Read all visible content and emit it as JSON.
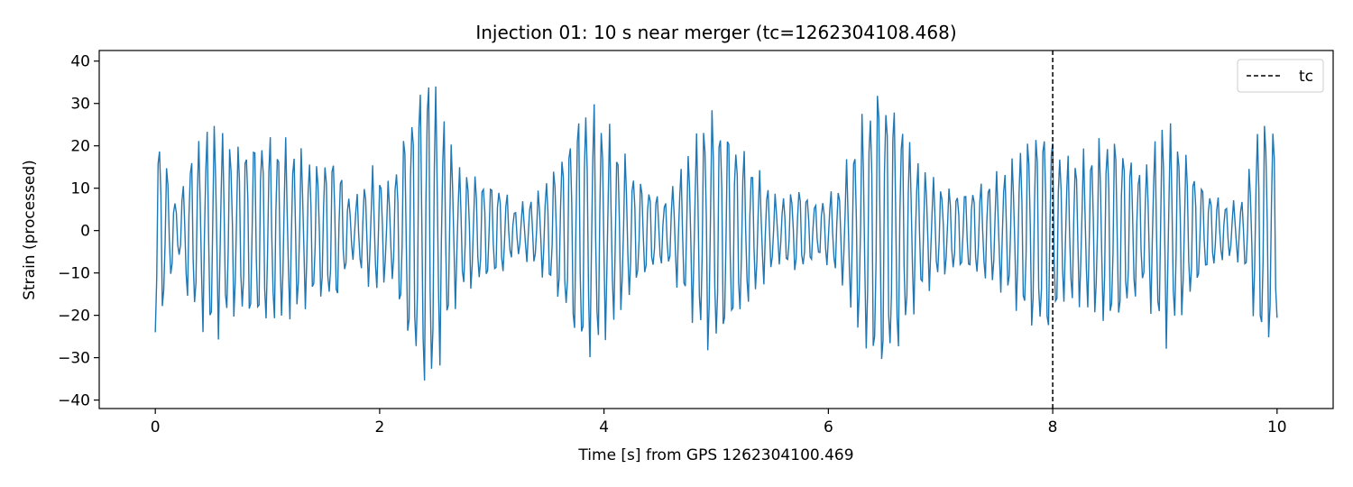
{
  "chart_data": {
    "type": "line",
    "title": "Injection 01: 10 s near merger (tc=1262304108.468)",
    "xlabel": "Time [s] from GPS 1262304100.469",
    "ylabel": "Strain (processed)",
    "xlim": [
      -0.5,
      10.5
    ],
    "ylim": [
      -42,
      42.5
    ],
    "xticks": [
      0,
      2,
      4,
      6,
      8,
      10
    ],
    "yticks": [
      -40,
      -30,
      -20,
      -10,
      0,
      10,
      20,
      30,
      40
    ],
    "xtick_labels": [
      "0",
      "2",
      "4",
      "6",
      "8",
      "10"
    ],
    "ytick_labels": [
      "−40",
      "−30",
      "−20",
      "−10",
      "0",
      "10",
      "20",
      "30",
      "40"
    ],
    "grid": false,
    "legend": {
      "placement": "upper-right",
      "entries": [
        "tc"
      ]
    },
    "colors": {
      "series": "#1f77b4",
      "tc_line": "#000000"
    },
    "series": [
      {
        "style": "solid",
        "sampling": {
          "start": 0,
          "end": 10,
          "step": 0.0125
        },
        "envelope": {
          "note": "oscillation peak amplitude envelope read from plot",
          "t": [
            0,
            0.05,
            0.12,
            0.2,
            0.3,
            0.5,
            0.7,
            0.95,
            1.2,
            1.45,
            1.6,
            1.75,
            1.95,
            2.1,
            2.25,
            2.35,
            2.45,
            2.55,
            2.7,
            2.9,
            3.1,
            3.2,
            3.4,
            3.6,
            3.8,
            3.9,
            4.05,
            4.3,
            4.55,
            4.75,
            4.95,
            5.1,
            5.35,
            5.55,
            5.75,
            5.9,
            6.1,
            6.3,
            6.45,
            6.6,
            6.8,
            7.0,
            7.2,
            7.4,
            7.6,
            7.8,
            7.95,
            8.1,
            8.3,
            8.5,
            8.6,
            8.8,
            9.0,
            9.15,
            9.35,
            9.55,
            9.7,
            9.85,
            10.0
          ],
          "a": [
            24,
            21,
            13,
            5,
            17,
            24,
            19,
            22,
            19,
            15,
            18,
            6,
            14,
            10,
            26,
            33,
            38,
            27,
            14,
            12,
            10,
            5,
            8,
            16,
            29,
            28,
            22,
            12,
            7,
            17,
            28,
            24,
            14,
            7,
            10,
            6,
            10,
            25,
            34,
            29,
            15,
            10,
            9,
            11,
            14,
            22,
            25,
            16,
            17,
            22,
            21,
            13,
            25,
            19,
            10,
            6,
            7,
            26,
            24
          ]
        },
        "frequency_hz": 14.2
      }
    ],
    "vlines": [
      {
        "x": 8.0,
        "style": "dashed",
        "label": "tc"
      }
    ]
  }
}
